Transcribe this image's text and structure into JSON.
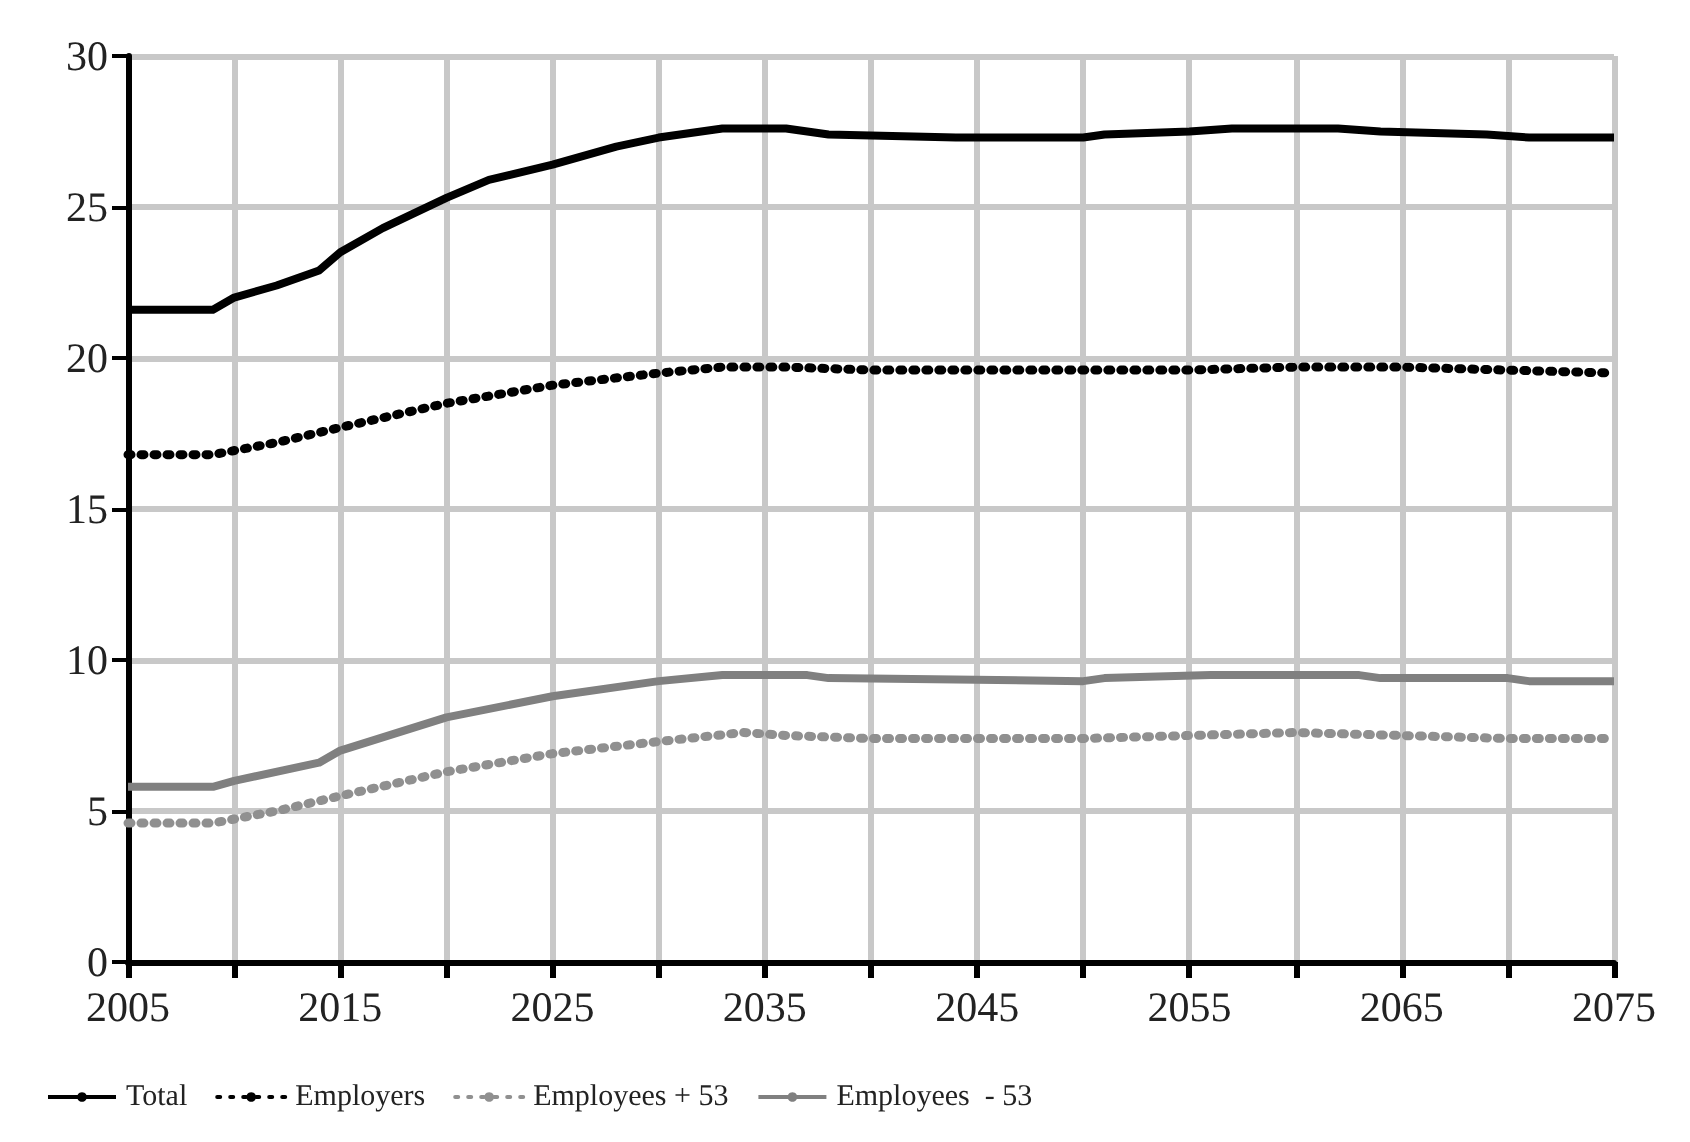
{
  "chart_data": {
    "type": "line",
    "xlim": [
      2005,
      2075
    ],
    "ylim": [
      0,
      30
    ],
    "xticks": [
      2005,
      {
        "value": 2010,
        "label": null
      },
      2015,
      {
        "value": 2020,
        "label": null
      },
      2025,
      {
        "value": 2030,
        "label": null
      },
      2035,
      {
        "value": 2040,
        "label": null
      },
      2045,
      {
        "value": 2050,
        "label": null
      },
      2055,
      {
        "value": 2060,
        "label": null
      },
      2065,
      {
        "value": 2070,
        "label": null
      },
      2075
    ],
    "yticks": [
      0,
      5,
      10,
      15,
      20,
      25,
      30
    ],
    "grid": true,
    "legend": "bottom",
    "marker": "none",
    "series": [
      {
        "name": "Total",
        "color": "#000000",
        "line_style": "solid",
        "x": [
          2005,
          2009,
          2010,
          2012,
          2014,
          2015,
          2017,
          2020,
          2022,
          2025,
          2028,
          2030,
          2033,
          2036,
          2038,
          2044,
          2050,
          2051,
          2055,
          2057,
          2062,
          2064,
          2069,
          2071,
          2075
        ],
        "values": [
          21.6,
          21.6,
          22.0,
          22.4,
          22.9,
          23.5,
          24.3,
          25.3,
          25.9,
          26.4,
          27.0,
          27.3,
          27.6,
          27.6,
          27.4,
          27.3,
          27.3,
          27.4,
          27.5,
          27.6,
          27.6,
          27.5,
          27.4,
          27.3,
          27.3
        ]
      },
      {
        "name": "Employers",
        "color": "#000000",
        "line_style": "dotted",
        "x": [
          2005,
          2009,
          2012,
          2015,
          2020,
          2025,
          2030,
          2033,
          2036,
          2040,
          2050,
          2055,
          2060,
          2065,
          2070,
          2075
        ],
        "values": [
          16.8,
          16.8,
          17.2,
          17.7,
          18.5,
          19.1,
          19.5,
          19.7,
          19.7,
          19.6,
          19.6,
          19.6,
          19.7,
          19.7,
          19.6,
          19.5
        ]
      },
      {
        "name": "Employees + 53",
        "color": "#909090",
        "line_style": "dotted",
        "x": [
          2005,
          2009,
          2012,
          2015,
          2020,
          2025,
          2030,
          2034,
          2036,
          2040,
          2050,
          2055,
          2060,
          2065,
          2070,
          2075
        ],
        "values": [
          4.6,
          4.6,
          5.0,
          5.5,
          6.3,
          6.9,
          7.3,
          7.6,
          7.5,
          7.4,
          7.4,
          7.5,
          7.6,
          7.5,
          7.4,
          7.4
        ]
      },
      {
        "name": "Employees  - 53",
        "color": "#808080",
        "line_style": "solid",
        "x": [
          2005,
          2009,
          2010,
          2014,
          2015,
          2020,
          2025,
          2030,
          2033,
          2037,
          2038,
          2050,
          2051,
          2056,
          2063,
          2064,
          2070,
          2071,
          2075
        ],
        "values": [
          5.8,
          5.8,
          6.0,
          6.6,
          7.0,
          8.1,
          8.8,
          9.3,
          9.5,
          9.5,
          9.4,
          9.3,
          9.4,
          9.5,
          9.5,
          9.4,
          9.4,
          9.3,
          9.3
        ]
      }
    ]
  }
}
